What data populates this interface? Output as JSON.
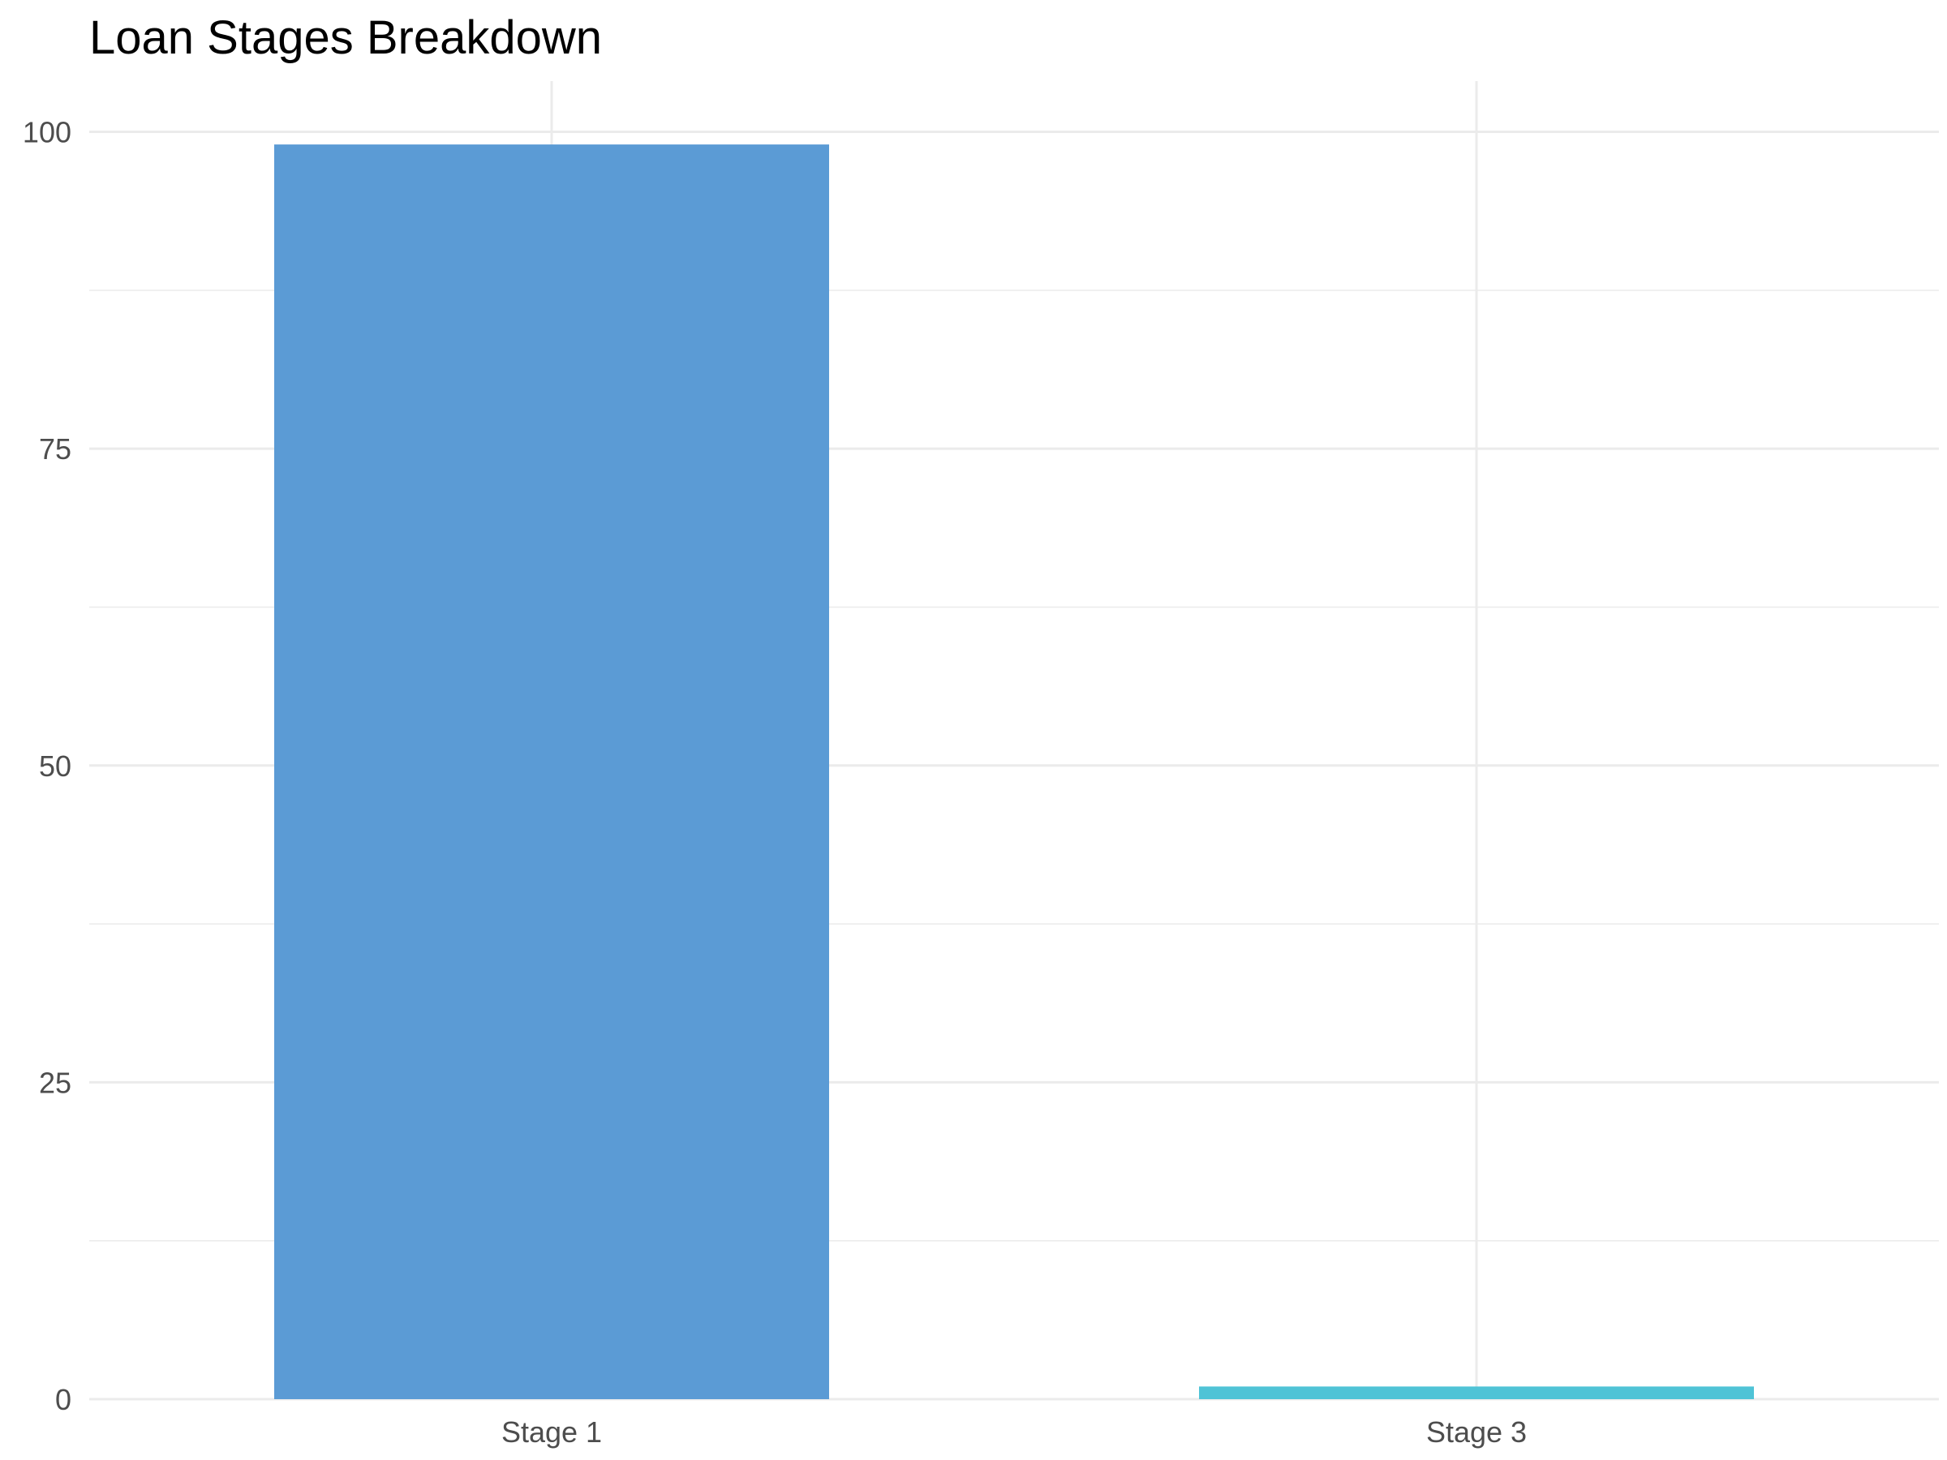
{
  "chart_data": {
    "type": "bar",
    "title": "Loan Stages Breakdown",
    "xlabel": "",
    "ylabel": "",
    "categories": [
      "Stage 1",
      "Stage 3"
    ],
    "values": [
      99,
      1
    ],
    "colors": [
      "#5b9bd5",
      "#4fc3d6"
    ],
    "ylim": [
      0,
      104
    ],
    "y_ticks": [
      0,
      25,
      50,
      75,
      100
    ],
    "y_tick_labels": [
      "0",
      "25",
      "50",
      "75",
      "100"
    ],
    "grid": true,
    "grid_color": "#ebebeb",
    "legend": "none"
  }
}
